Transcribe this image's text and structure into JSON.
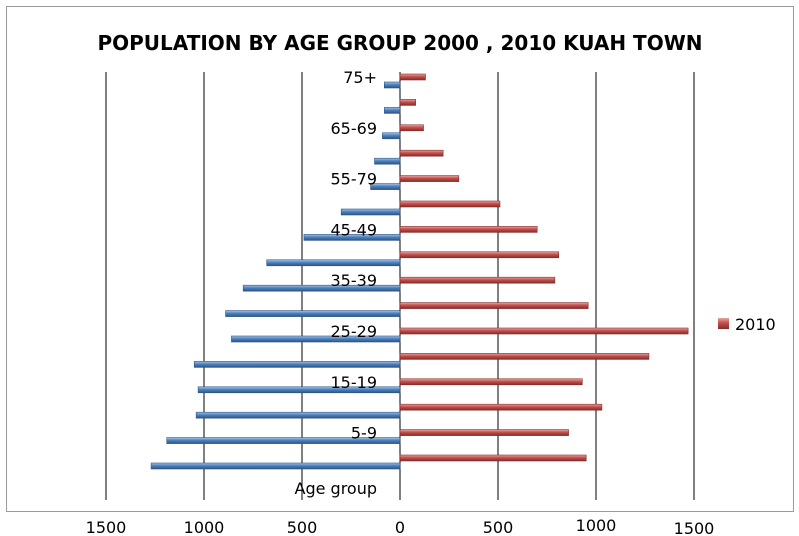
{
  "chart_data": {
    "type": "bar",
    "orientation": "horizontal",
    "title": "POPULATION BY AGE GROUP 2000 , 2010 KUAH TOWN",
    "ylabel": "Age group",
    "categories": [
      "",
      "5-9",
      "",
      "15-19",
      "",
      "25-29",
      "",
      "35-39",
      "",
      "45-49",
      "",
      "55-79",
      "",
      "65-69",
      "",
      "75+"
    ],
    "series": [
      {
        "name": "",
        "side": "left",
        "color": "#4f81bd",
        "values": [
          1270,
          1190,
          1040,
          1030,
          1050,
          860,
          890,
          800,
          680,
          490,
          300,
          150,
          130,
          90,
          80,
          80
        ]
      },
      {
        "name": "2010",
        "side": "right",
        "color": "#c0504d",
        "values": [
          950,
          860,
          1030,
          930,
          1270,
          1470,
          960,
          790,
          810,
          700,
          510,
          300,
          220,
          120,
          80,
          130
        ]
      }
    ],
    "x_ticks": [
      "1500",
      "1000",
      "500",
      "0",
      "500",
      "1000",
      "1500"
    ],
    "xlim": [
      -1500,
      1500
    ],
    "grid": true,
    "legend_position": "right"
  }
}
